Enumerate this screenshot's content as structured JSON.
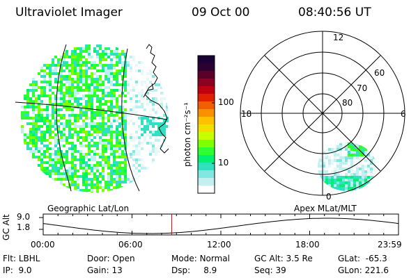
{
  "header": {
    "instrument": "Ultraviolet Imager",
    "date": "09 Oct 00",
    "time": "08:40:56 UT"
  },
  "colorbar": {
    "label": "photon cm⁻²s⁻¹",
    "ticks": [
      "100",
      "10"
    ],
    "colors": [
      "#1a0033",
      "#2b0030",
      "#5a0028",
      "#8c0020",
      "#c00010",
      "#e02000",
      "#f06000",
      "#f89000",
      "#ffc000",
      "#f0e000",
      "#c8ff00",
      "#80ff00",
      "#30ff30",
      "#00f070",
      "#30e0c0",
      "#80e8e0",
      "#c0f0f0",
      "#ffffff"
    ]
  },
  "panels": {
    "left_label": "Geographic Lat/Lon",
    "right_label": "Apex MLat/MLT"
  },
  "polar": {
    "mlt_labels": [
      "12",
      "18",
      "6",
      "0"
    ],
    "lat_labels": [
      "60",
      "70",
      "80"
    ]
  },
  "altplot": {
    "ylabel": "GC Alt",
    "yticks": [
      "9.0",
      "1.8"
    ],
    "xticks": [
      "00:00",
      "06:00",
      "12:00",
      "18:00",
      "23:59"
    ],
    "current_time_hours": 8.68
  },
  "info": {
    "flt_label": "Flt:",
    "flt_value": "LBHL",
    "ip_label": "IP:",
    "ip_value": "9.0",
    "door_label": "Door:",
    "door_value": "Open",
    "gain_label": "Gain:",
    "gain_value": "13",
    "mode_label": "Mode:",
    "mode_value": "Normal",
    "dsp_label": "Dsp:",
    "dsp_value": "8.9",
    "gcalt_label": "GC Alt:",
    "gcalt_value": "3.5 Re",
    "seq_label": "Seq:",
    "seq_value": "39",
    "glat_label": "GLat:",
    "glat_value": "-65.3",
    "glon_label": "GLon:",
    "glon_value": "221.6"
  }
}
